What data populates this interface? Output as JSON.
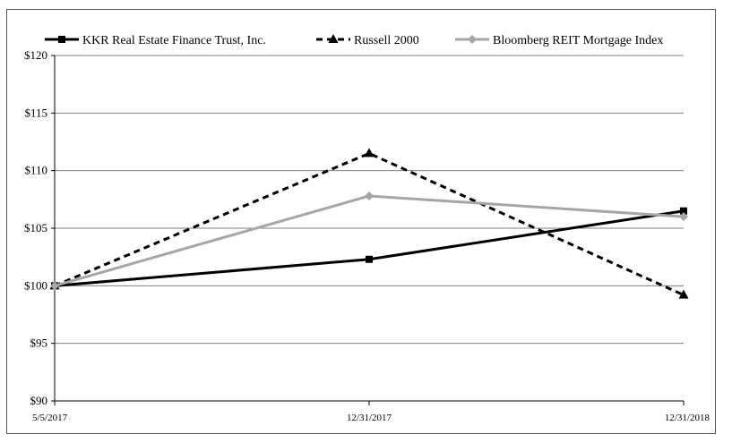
{
  "chart_data": {
    "type": "line",
    "x": [
      "5/5/2017",
      "12/31/2017",
      "12/31/2018"
    ],
    "ylim": [
      90,
      120
    ],
    "ytick_step": 5,
    "ytick_prefix": "$",
    "grid": true,
    "legend_position": "top",
    "series": [
      {
        "name": "KKR Real Estate Finance Trust, Inc.",
        "values": [
          100,
          102.3,
          106.5
        ],
        "color": "#000000",
        "dash": "solid",
        "marker": "square"
      },
      {
        "name": "Russell 2000",
        "values": [
          100,
          111.5,
          99.2
        ],
        "color": "#000000",
        "dash": "dashed",
        "marker": "triangle"
      },
      {
        "name": "Bloomberg REIT Mortgage Index",
        "values": [
          100,
          107.8,
          106.0
        ],
        "color": "#a6a6a6",
        "dash": "solid",
        "marker": "diamond"
      }
    ]
  }
}
